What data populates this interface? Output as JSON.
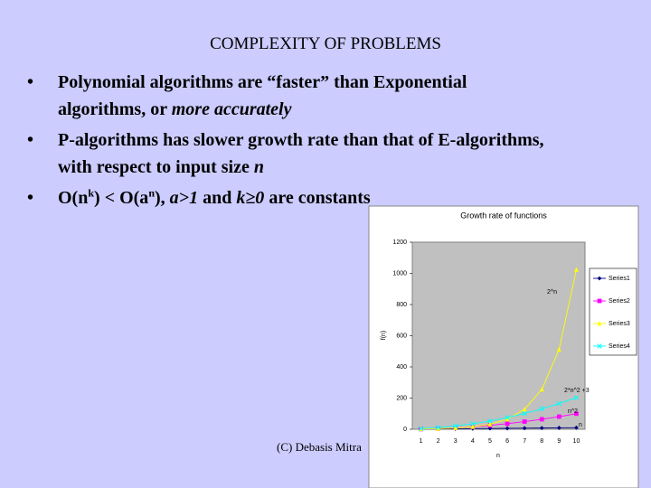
{
  "slide": {
    "title": "COMPLEXITY OF PROBLEMS",
    "bullets": [
      [
        "Polynomial algorithms are “faster” than Exponential algorithms, or ",
        "more accurately"
      ],
      [
        "P-algorithms has slower growth rate than that of E-algorithms, with respect to input size ",
        "n"
      ],
      [
        "O(n",
        "k",
        ") < O(a",
        "n",
        "), ",
        "a>1",
        " and ",
        "k≥0",
        " are constants"
      ]
    ],
    "footer": "(C) Debasis Mitra"
  },
  "chart_data": {
    "type": "line",
    "title": "Growth rate of functions",
    "x_label": "n",
    "y_label": "f(n)",
    "categories": [
      "1",
      "2",
      "3",
      "4",
      "5",
      "6",
      "7",
      "8",
      "9",
      "10"
    ],
    "ylim": [
      0,
      1200
    ],
    "yticks": [
      0,
      200,
      400,
      600,
      800,
      1000,
      1200
    ],
    "series": [
      {
        "name": "Series1",
        "color": "#000080",
        "marker": "diamond",
        "values": [
          1,
          2,
          3,
          4,
          5,
          6,
          7,
          8,
          9,
          10
        ]
      },
      {
        "name": "Series2",
        "color": "#ff00ff",
        "marker": "square",
        "values": [
          1,
          4,
          9,
          16,
          25,
          36,
          49,
          64,
          81,
          100
        ]
      },
      {
        "name": "Series3",
        "color": "#ffff00",
        "marker": "triangle",
        "values": [
          2,
          4,
          8,
          16,
          32,
          64,
          128,
          256,
          512,
          1024
        ]
      },
      {
        "name": "Series4",
        "color": "#00ffff",
        "marker": "x",
        "values": [
          5,
          11,
          21,
          35,
          53,
          75,
          101,
          131,
          165,
          203
        ]
      }
    ],
    "annotations": [
      "2^n",
      "2*n^2 +3",
      "n^2",
      "n"
    ],
    "grid": false,
    "legend": "right"
  }
}
